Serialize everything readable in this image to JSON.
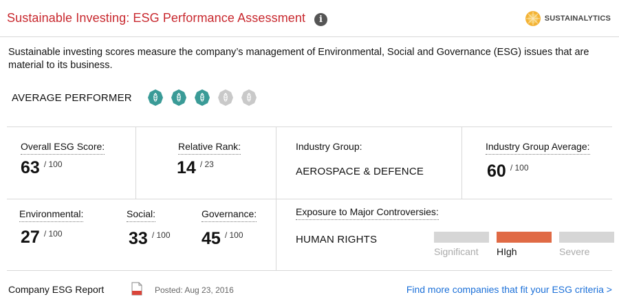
{
  "header": {
    "title": "Sustainable Investing: ESG Performance Assessment",
    "info_icon": "info-icon",
    "brand": "SUSTAINALYTICS"
  },
  "description": "Sustainable investing scores measure the company’s management of Environmental, Social and Governance (ESG) issues that are material to its business.",
  "performer": {
    "label": "AVERAGE PERFORMER",
    "rating": 3,
    "max_rating": 5,
    "filled_color": "#3a9b97",
    "empty_color": "#c9c9c9"
  },
  "overall": {
    "label": "Overall ESG Score:",
    "value": "63",
    "denominator": "/ 100"
  },
  "rank": {
    "label": "Relative Rank:",
    "value": "14",
    "denominator": "/ 23"
  },
  "industry": {
    "label": "Industry Group:",
    "value": "AEROSPACE & DEFENCE"
  },
  "industry_avg": {
    "label": "Industry Group Average:",
    "value": "60",
    "denominator": "/ 100"
  },
  "environmental": {
    "label": "Environmental:",
    "value": "27",
    "denominator": "/ 100"
  },
  "social": {
    "label": "Social:",
    "value": "33",
    "denominator": "/ 100"
  },
  "governance": {
    "label": "Governance:",
    "value": "45",
    "denominator": "/ 100"
  },
  "controversies": {
    "label": "Exposure to Major Controversies:",
    "item": "HUMAN RIGHTS",
    "levels": [
      "Significant",
      "HIgh",
      "Severe"
    ],
    "active_level": "HIgh",
    "active_color": "#e06a45",
    "inactive_color": "#d6d6d6"
  },
  "footer": {
    "report_label": "Company ESG Report",
    "posted": "Posted: Aug 23, 2016",
    "link": "Find more companies that fit your ESG criteria >"
  }
}
